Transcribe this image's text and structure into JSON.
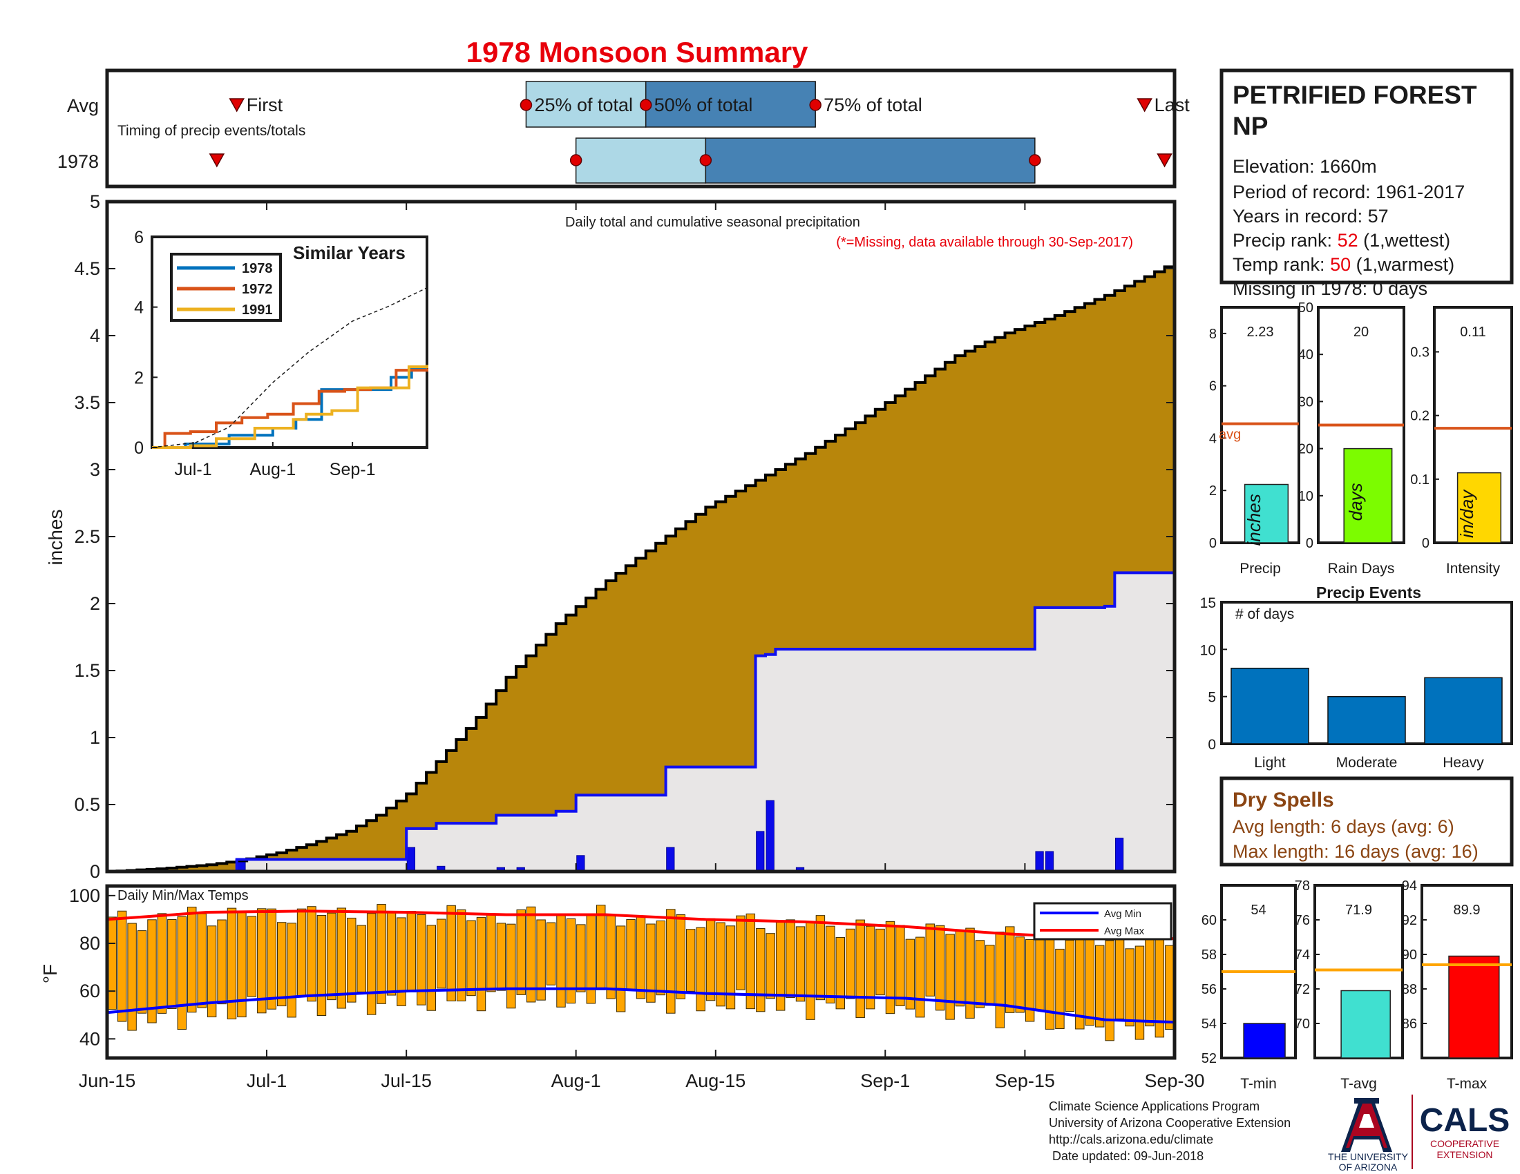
{
  "title": "1978 Monsoon Summary",
  "colors": {
    "title": "#e8000b",
    "axis": "#1a1a1a",
    "cumulative_fill": "#b8860b",
    "normal_fill": "#e8e6e6",
    "normal_line": "#1010f0",
    "daily_bar": "#0b0be8",
    "temp_bar": "#ffa500",
    "avg_max_line": "#ff0000",
    "avg_min_line": "#0000ff",
    "q_light": "#add8e6",
    "q_dark": "#4682b4",
    "marker_red": "#e00000",
    "avg_line": "#d95319",
    "bar_precip": "#40e0d0",
    "bar_raindays": "#7cfc00",
    "bar_intensity": "#ffd700",
    "bar_events": "#0072bd",
    "dry_text": "#8b4513",
    "tmin": "#0000ff",
    "tavg": "#40e0d0",
    "tmax": "#ff0000",
    "t_avg_line": "#ffa500",
    "ua_red": "#ab0520",
    "ua_blue": "#0c234b"
  },
  "timing": {
    "row_labels": [
      "Avg",
      "1978"
    ],
    "annotation": "Timing of precip events/totals",
    "labels": {
      "first": "First",
      "p25": "25% of total",
      "p50": "50% of total",
      "p75": "75% of total",
      "last": "Last"
    },
    "avg": {
      "first": "Jun-28",
      "p25": "Jul-27",
      "p50": "Aug-8",
      "p75": "Aug-25",
      "last": "Sep-27"
    },
    "y1978": {
      "first": "Jun-26",
      "p25": "Aug-1",
      "p50": "Aug-14",
      "p75": "Sep-16",
      "last": "Sep-29"
    }
  },
  "info": {
    "station": "PETRIFIED FOREST NP",
    "elevation": "Elevation: 1660m",
    "period": "Period of record: 1961-2017",
    "years": "Years in record: 57",
    "precip_rank_label": "Precip rank: ",
    "precip_rank": "52",
    "precip_rank_note": " (1,wettest)",
    "temp_rank_label": "Temp rank: ",
    "temp_rank": "50",
    "temp_rank_note": " (1,warmest)",
    "missing": "Missing in 1978: 0 days"
  },
  "main_chart": {
    "ylabel": "inches",
    "note1": "Daily total and cumulative seasonal precipitation",
    "note2": "(*=Missing, data available through 30-Sep-2017)"
  },
  "temp_chart": {
    "title": "Daily Min/Max Temps",
    "ylabel": "°F",
    "legend": [
      "Avg Min",
      "Avg Max"
    ]
  },
  "inset": {
    "title": "Similar Years",
    "legend": [
      "1978",
      "1972",
      "1991"
    ]
  },
  "precip_events": {
    "title": "Precip Events",
    "ylabel": "# of days"
  },
  "dry_spells": {
    "title": "Dry Spells",
    "avg_length": "Avg length: 6 days (avg: 6)",
    "max_length": "Max length: 16 days (avg: 16)"
  },
  "footer": {
    "lines": [
      "Climate Science Applications Program",
      "University of Arizona Cooperative Extension",
      "http://cals.arizona.edu/climate",
      " Date updated: 09-Jun-2018"
    ],
    "ua_line1": "THE UNIVERSITY",
    "ua_line2": "OF ARIZONA",
    "cals": "CALS",
    "cals_line1": "COOPERATIVE",
    "cals_line2": "EXTENSION"
  },
  "chart_data": [
    {
      "id": "cumulative_precip",
      "type": "area",
      "ylabel": "inches",
      "x_tick_labels": [
        "Jun-15",
        "Jul-1",
        "Jul-15",
        "Aug-1",
        "Aug-15",
        "Sep-1",
        "Sep-15",
        "Sep-30"
      ],
      "x_tick_days": [
        0,
        16,
        30,
        47,
        61,
        78,
        92,
        107
      ],
      "ylim": [
        0,
        5
      ],
      "y_ticks": [
        0,
        0.5,
        1,
        1.5,
        2,
        2.5,
        3,
        3.5,
        4,
        4.5,
        5
      ],
      "series": [
        {
          "name": "Average cumulative",
          "x": [
            0,
            5,
            10,
            13,
            17,
            20,
            24,
            27,
            30,
            33,
            37,
            40,
            45,
            50,
            55,
            60,
            64,
            70,
            75,
            80,
            85,
            90,
            95,
            100,
            104,
            107
          ],
          "y": [
            0,
            0.02,
            0.05,
            0.08,
            0.14,
            0.2,
            0.3,
            0.42,
            0.58,
            0.82,
            1.15,
            1.45,
            1.85,
            2.17,
            2.45,
            2.72,
            2.88,
            3.12,
            3.35,
            3.6,
            3.85,
            4.02,
            4.15,
            4.3,
            4.44,
            4.55
          ]
        },
        {
          "name": "1978 cumulative",
          "x": [
            0,
            13,
            30,
            33,
            39,
            45,
            47,
            56,
            65,
            66,
            67,
            85,
            93,
            96,
            100,
            101,
            107
          ],
          "y": [
            0,
            0.09,
            0.32,
            0.36,
            0.42,
            0.45,
            0.57,
            0.78,
            1.61,
            1.62,
            1.66,
            1.66,
            1.97,
            1.97,
            1.98,
            2.23,
            2.23
          ]
        },
        {
          "name": "1978 daily precip",
          "x": [
            13,
            30,
            33,
            39,
            41,
            47,
            56,
            65,
            66,
            69,
            93,
            94,
            101
          ],
          "y": [
            0.09,
            0.18,
            0.04,
            0.03,
            0.03,
            0.12,
            0.18,
            0.3,
            0.53,
            0.03,
            0.15,
            0.15,
            0.25
          ]
        }
      ]
    },
    {
      "id": "daily_temps",
      "type": "bar",
      "title": "Daily Min/Max Temps",
      "ylabel": "°F",
      "ylim": [
        32,
        104
      ],
      "y_ticks": [
        40,
        60,
        80,
        100
      ],
      "series": [
        {
          "name": "Avg Max",
          "x": [
            0,
            10,
            20,
            30,
            40,
            50,
            60,
            70,
            80,
            90,
            100,
            107
          ],
          "y": [
            90,
            93,
            93.5,
            93,
            92,
            92,
            90,
            89,
            87,
            84,
            82,
            82
          ]
        },
        {
          "name": "Avg Min",
          "x": [
            0,
            10,
            20,
            30,
            40,
            50,
            60,
            70,
            80,
            90,
            100,
            107
          ],
          "y": [
            51,
            55,
            58,
            60,
            61,
            61,
            59,
            58,
            57,
            54,
            48,
            47
          ]
        }
      ]
    },
    {
      "id": "similar_years",
      "type": "line",
      "title": "Similar Years",
      "x_tick_labels": [
        "Jul-1",
        "Aug-1",
        "Sep-1"
      ],
      "ylim": [
        0,
        6
      ],
      "y_ticks": [
        0,
        2,
        4,
        6
      ],
      "series": [
        {
          "name": "1978",
          "x": [
            0,
            13,
            30,
            47,
            56,
            66,
            85,
            93,
            101,
            107
          ],
          "y": [
            0,
            0.1,
            0.35,
            0.55,
            0.8,
            1.65,
            1.65,
            2.0,
            2.25,
            2.25
          ]
        },
        {
          "name": "1972",
          "x": [
            0,
            5,
            15,
            25,
            35,
            45,
            55,
            65,
            75,
            85,
            95,
            107
          ],
          "y": [
            0,
            0.4,
            0.45,
            0.7,
            0.85,
            0.95,
            1.25,
            1.6,
            1.65,
            1.7,
            2.2,
            2.25
          ]
        },
        {
          "name": "1991",
          "x": [
            0,
            15,
            25,
            40,
            55,
            60,
            70,
            80,
            90,
            100,
            107
          ],
          "y": [
            0,
            0.05,
            0.25,
            0.55,
            0.8,
            0.95,
            1.05,
            1.7,
            1.7,
            2.3,
            2.35
          ]
        },
        {
          "name": "average",
          "x": [
            0,
            17,
            30,
            47,
            61,
            78,
            92,
            107
          ],
          "y": [
            0,
            0.14,
            0.58,
            1.85,
            2.72,
            3.6,
            4.02,
            4.55
          ]
        }
      ]
    },
    {
      "id": "precip_total",
      "type": "bar",
      "categories": [
        "Precip"
      ],
      "values": [
        2.23
      ],
      "value_labels": [
        "2.23"
      ],
      "bar_label": "inches",
      "avg": 4.55,
      "avg_label": "avg",
      "ylim": [
        0,
        9
      ],
      "y_ticks": [
        0,
        2,
        4,
        6,
        8
      ]
    },
    {
      "id": "rain_days",
      "type": "bar",
      "categories": [
        "Rain Days"
      ],
      "values": [
        20
      ],
      "value_labels": [
        "20"
      ],
      "bar_label": "days",
      "avg": 25,
      "ylim": [
        0,
        50
      ],
      "y_ticks": [
        0,
        10,
        20,
        30,
        40,
        50
      ]
    },
    {
      "id": "intensity",
      "type": "bar",
      "categories": [
        "Intensity"
      ],
      "values": [
        0.11
      ],
      "value_labels": [
        "0.11"
      ],
      "bar_label": "in/day",
      "avg": 0.18,
      "ylim": [
        0,
        0.37
      ],
      "y_ticks": [
        0,
        0.1,
        0.2,
        0.3
      ]
    },
    {
      "id": "precip_events",
      "type": "bar",
      "title": "Precip Events",
      "ylabel": "# of days",
      "categories": [
        "Light",
        "Moderate",
        "Heavy"
      ],
      "values": [
        8,
        5,
        7
      ],
      "ylim": [
        0,
        15
      ],
      "y_ticks": [
        0,
        5,
        10,
        15
      ]
    },
    {
      "id": "tmin",
      "type": "bar",
      "categories": [
        "T-min"
      ],
      "values": [
        54
      ],
      "value_labels": [
        "54"
      ],
      "avg": 57,
      "ylim": [
        52,
        62
      ],
      "y_ticks": [
        52,
        54,
        56,
        58,
        60
      ]
    },
    {
      "id": "tavg",
      "type": "bar",
      "categories": [
        "T-avg"
      ],
      "values": [
        71.9
      ],
      "value_labels": [
        "71.9"
      ],
      "avg": 73.1,
      "ylim": [
        68,
        78
      ],
      "y_ticks": [
        70,
        72,
        74,
        76,
        78
      ]
    },
    {
      "id": "tmax",
      "type": "bar",
      "categories": [
        "T-max"
      ],
      "values": [
        89.9
      ],
      "value_labels": [
        "89.9"
      ],
      "avg": 89.4,
      "ylim": [
        84,
        94
      ],
      "y_ticks": [
        86,
        88,
        90,
        92,
        94
      ]
    }
  ]
}
